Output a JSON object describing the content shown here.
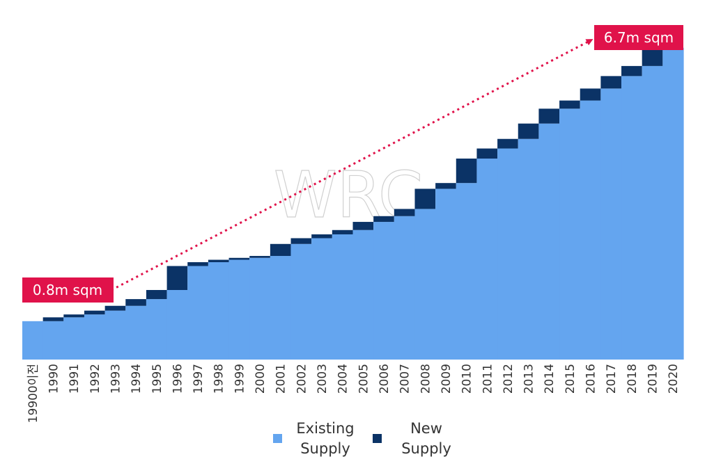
{
  "chart_data": {
    "type": "area",
    "subtype": "stacked-step",
    "categories": [
      "19900이전",
      "1990",
      "1991",
      "1992",
      "1993",
      "1994",
      "1995",
      "1996",
      "1997",
      "1998",
      "1999",
      "2000",
      "2001",
      "2002",
      "2003",
      "2004",
      "2005",
      "2006",
      "2007",
      "2008",
      "2009",
      "2010",
      "2011",
      "2012",
      "2013",
      "2014",
      "2015",
      "2016",
      "2017",
      "2018",
      "2019",
      "2020"
    ],
    "series": [
      {
        "name": "Existing Supply",
        "color": "#64a5ef",
        "values": [
          0.8,
          0.8,
          0.88,
          0.94,
          1.02,
          1.12,
          1.26,
          1.45,
          1.95,
          2.03,
          2.08,
          2.12,
          2.16,
          2.41,
          2.53,
          2.61,
          2.7,
          2.87,
          2.99,
          3.14,
          3.56,
          3.68,
          4.19,
          4.4,
          4.6,
          4.92,
          5.23,
          5.4,
          5.65,
          5.91,
          6.12,
          6.5
        ]
      },
      {
        "name": "New Supply",
        "color": "#0b3366",
        "values": [
          0,
          0.08,
          0.06,
          0.08,
          0.1,
          0.14,
          0.19,
          0.5,
          0.08,
          0.05,
          0.04,
          0.04,
          0.25,
          0.12,
          0.08,
          0.09,
          0.17,
          0.12,
          0.15,
          0.42,
          0.12,
          0.51,
          0.21,
          0.2,
          0.32,
          0.31,
          0.17,
          0.25,
          0.26,
          0.21,
          0.38,
          0.2
        ]
      }
    ],
    "ylim": [
      0,
      6.8
    ],
    "legend": {
      "position": "bottom-center",
      "items": [
        {
          "label_line1": "Existing",
          "label_line2": "Supply",
          "color": "#64a5ef"
        },
        {
          "label_line1": "New",
          "label_line2": "Supply",
          "color": "#0b3366"
        }
      ]
    },
    "annotations": {
      "start_label": "0.8m sqm",
      "end_label": "6.7m sqm",
      "color": "#e0124a"
    },
    "watermark": "WRC",
    "grid": false
  }
}
